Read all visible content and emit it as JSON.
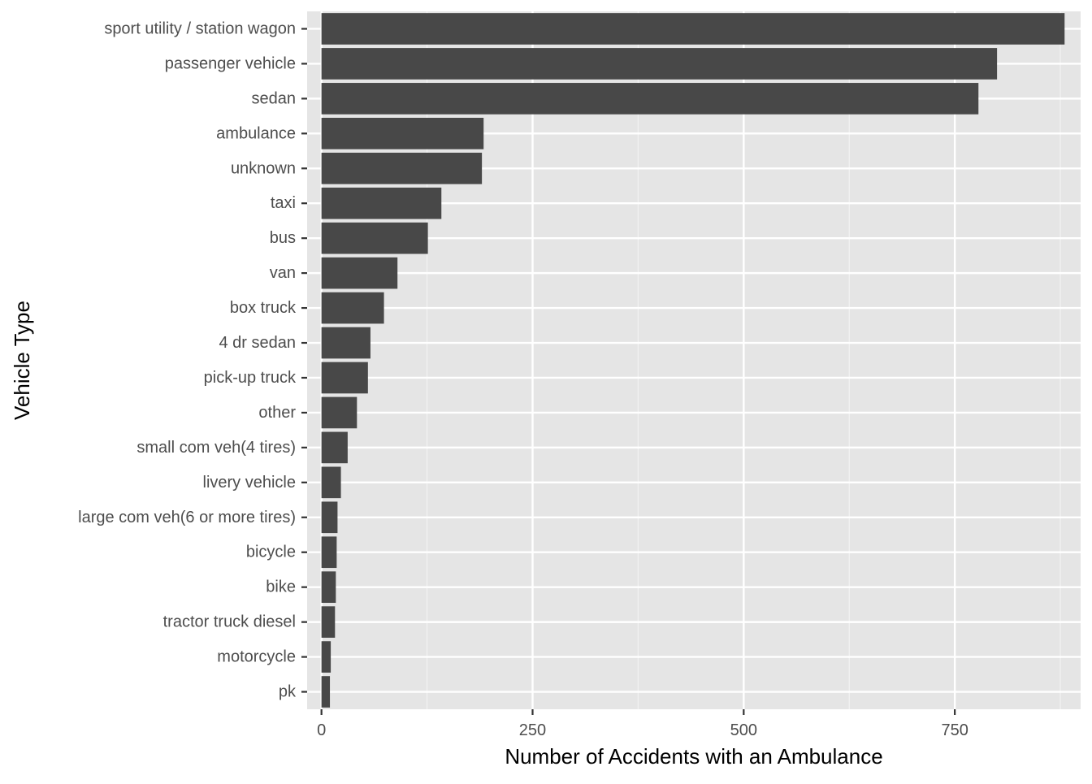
{
  "chart_data": {
    "type": "bar",
    "orientation": "horizontal",
    "xlabel": "Number of Accidents with an Ambulance",
    "ylabel": "Vehicle Type",
    "xlim": [
      -17,
      899
    ],
    "x_ticks": [
      0,
      250,
      500,
      750
    ],
    "x_tick_labels": [
      "0",
      "250",
      "500",
      "750"
    ],
    "x_minor_ticks": [
      125,
      375,
      625,
      875
    ],
    "grid": true,
    "legend": "none",
    "categories": [
      "sport utility / station wagon",
      "passenger vehicle",
      "sedan",
      "ambulance",
      "unknown",
      "taxi",
      "bus",
      "van",
      "box truck",
      "4 dr sedan",
      "pick-up truck",
      "other",
      "small com veh(4 tires) ",
      "livery vehicle",
      "large com veh(6 or more tires)",
      "bicycle",
      "bike",
      "tractor truck diesel",
      "motorcycle",
      "pk"
    ],
    "values": [
      880,
      800,
      778,
      192,
      190,
      142,
      126,
      90,
      74,
      58,
      55,
      42,
      31,
      23,
      19,
      18,
      17,
      16,
      11,
      10
    ]
  },
  "colors": {
    "panel_background": "#e5e5e5",
    "grid_major": "#ffffff",
    "grid_minor": "#f2f2f2",
    "bar_fill": "#484848",
    "tick_text": "#4d4d4d",
    "tick_mark": "#333333",
    "axis_title": "#000000"
  }
}
